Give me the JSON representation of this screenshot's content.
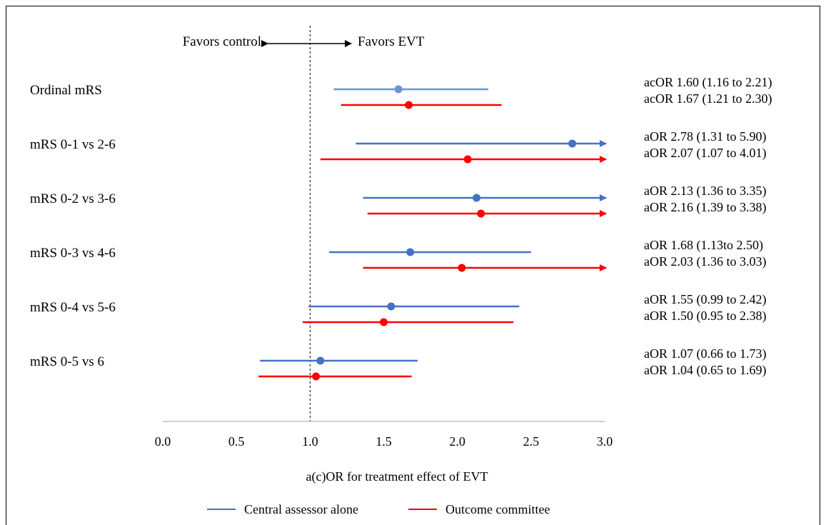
{
  "chart_data": {
    "type": "forest",
    "xlabel": "a(c)OR for treatment effect of EVT",
    "xlim": [
      0.0,
      3.0
    ],
    "xticks": [
      "0.0",
      "0.5",
      "1.0",
      "1.5",
      "2.0",
      "2.5",
      "3.0"
    ],
    "reference_line": 1.0,
    "direction_labels": {
      "left": "Favors control",
      "right": "Favors EVT"
    },
    "legend": [
      {
        "name": "Central assessor alone",
        "color": "#4472C4"
      },
      {
        "name": "Outcome committee",
        "color": "#FF0000"
      }
    ],
    "rows": [
      {
        "label": "Ordinal mRS",
        "central": {
          "est": 1.6,
          "lo": 1.16,
          "hi": 2.21,
          "text": "acOR 1.60 (1.16 to 2.21)",
          "color": "#6D93D3"
        },
        "committee": {
          "est": 1.67,
          "lo": 1.21,
          "hi": 2.3,
          "text": "acOR 1.67 (1.21 to 2.30)"
        }
      },
      {
        "label": "mRS 0-1 vs 2-6",
        "central": {
          "est": 2.78,
          "lo": 1.31,
          "hi": 5.9,
          "text": "aOR 2.78 (1.31 to 5.90)"
        },
        "committee": {
          "est": 2.07,
          "lo": 1.07,
          "hi": 4.01,
          "text": "aOR 2.07 (1.07 to 4.01)"
        }
      },
      {
        "label": "mRS 0-2 vs 3-6",
        "central": {
          "est": 2.13,
          "lo": 1.36,
          "hi": 3.35,
          "text": "aOR 2.13 (1.36 to 3.35)"
        },
        "committee": {
          "est": 2.16,
          "lo": 1.39,
          "hi": 3.38,
          "text": "aOR 2.16 (1.39 to 3.38)"
        }
      },
      {
        "label": "mRS 0-3 vs 4-6",
        "central": {
          "est": 1.68,
          "lo": 1.13,
          "hi": 2.5,
          "text": "aOR 1.68 (1.13to 2.50)"
        },
        "committee": {
          "est": 2.03,
          "lo": 1.36,
          "hi": 3.03,
          "text": "aOR 2.03 (1.36 to 3.03)"
        }
      },
      {
        "label": "mRS 0-4 vs 5-6",
        "central": {
          "est": 1.55,
          "lo": 0.99,
          "hi": 2.42,
          "text": "aOR 1.55 (0.99 to 2.42)"
        },
        "committee": {
          "est": 1.5,
          "lo": 0.95,
          "hi": 2.38,
          "text": "aOR 1.50 (0.95 to 2.38)"
        }
      },
      {
        "label": "mRS 0-5 vs 6",
        "central": {
          "est": 1.07,
          "lo": 0.66,
          "hi": 1.73,
          "text": "aOR 1.07 (0.66 to 1.73)"
        },
        "committee": {
          "est": 1.04,
          "lo": 0.65,
          "hi": 1.69,
          "text": "aOR 1.04 (0.65 to 1.69)"
        }
      }
    ]
  }
}
